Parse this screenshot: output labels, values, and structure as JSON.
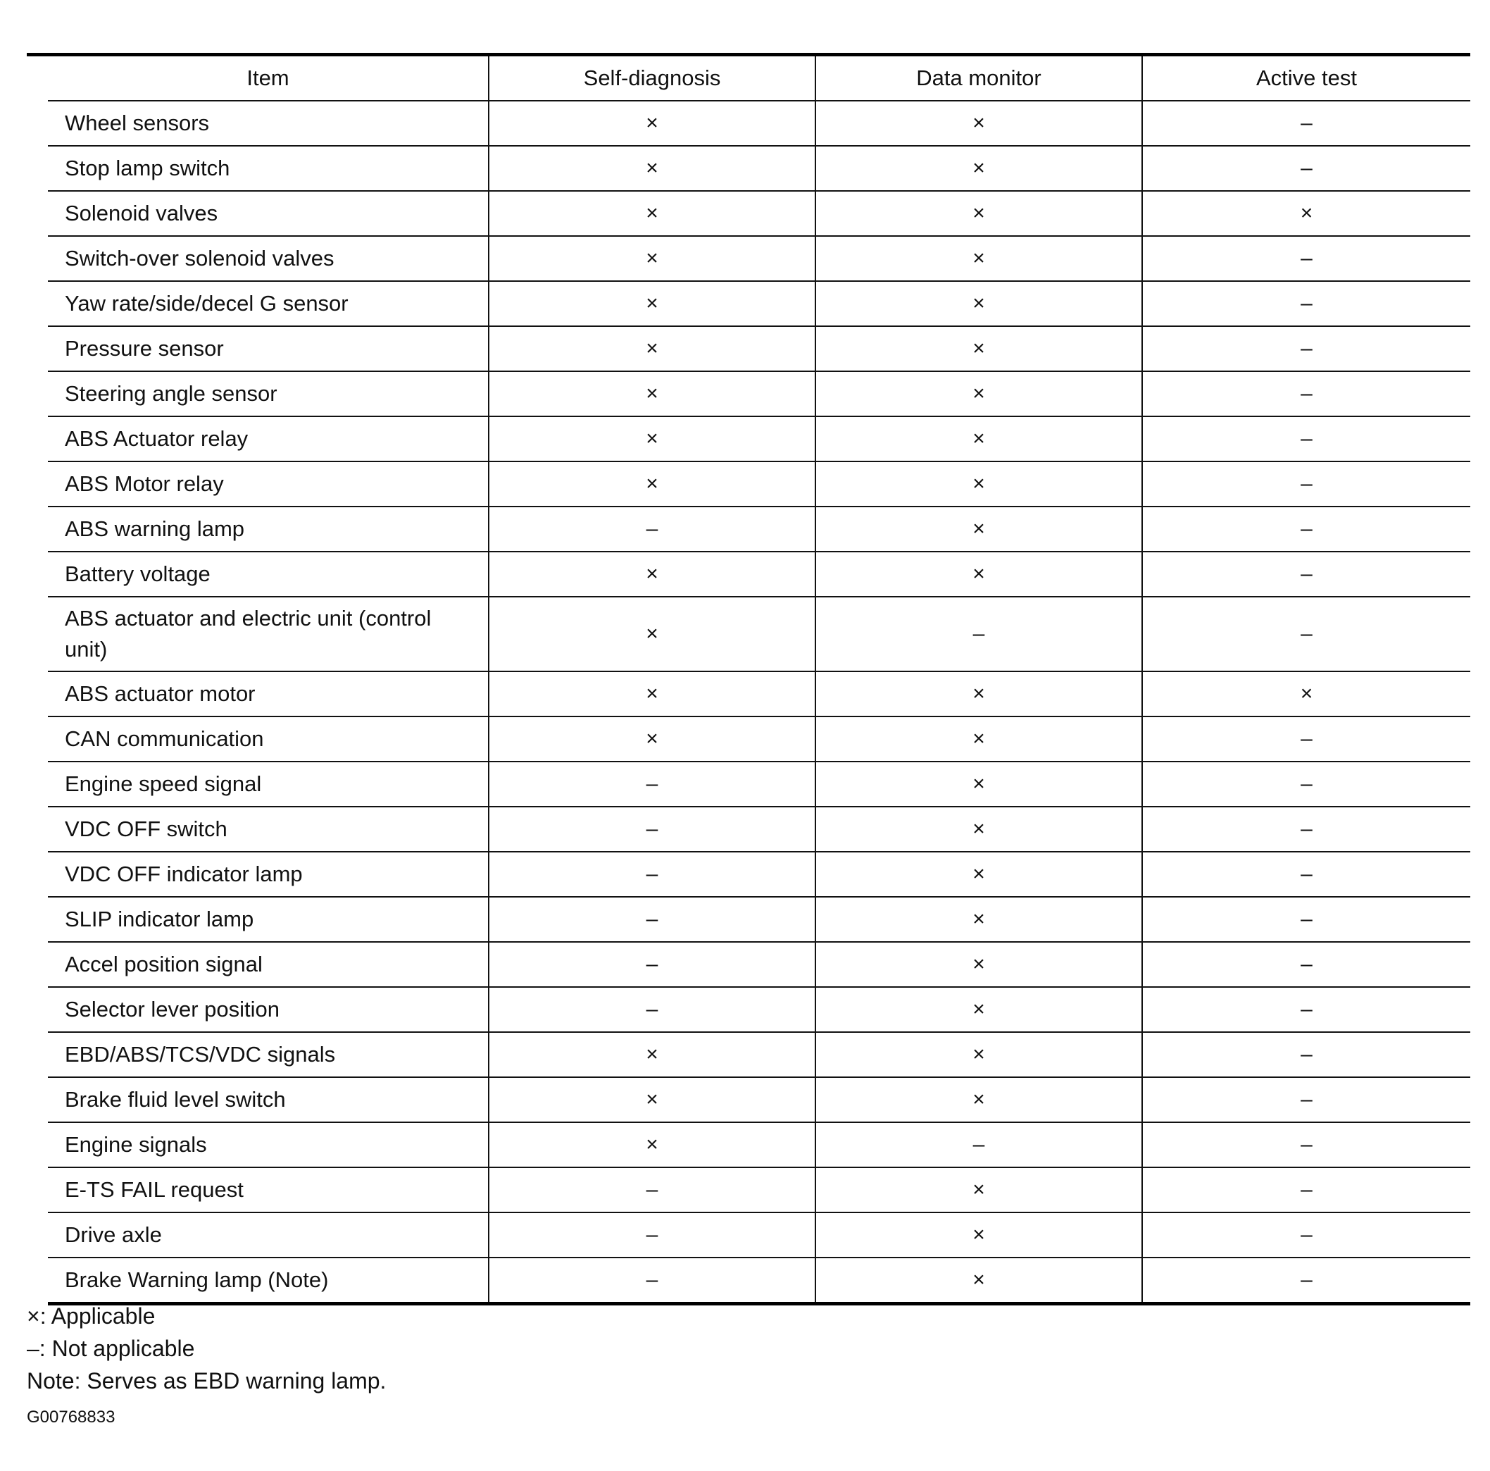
{
  "table": {
    "headers": [
      "Item",
      "Self-diagnosis",
      "Data monitor",
      "Active test"
    ],
    "rows": [
      [
        "Wheel sensors",
        "×",
        "×",
        "–"
      ],
      [
        "Stop lamp switch",
        "×",
        "×",
        "–"
      ],
      [
        "Solenoid valves",
        "×",
        "×",
        "×"
      ],
      [
        "Switch-over solenoid valves",
        "×",
        "×",
        "–"
      ],
      [
        "Yaw rate/side/decel G sensor",
        "×",
        "×",
        "–"
      ],
      [
        "Pressure sensor",
        "×",
        "×",
        "–"
      ],
      [
        "Steering angle sensor",
        "×",
        "×",
        "–"
      ],
      [
        "ABS Actuator relay",
        "×",
        "×",
        "–"
      ],
      [
        "ABS Motor relay",
        "×",
        "×",
        "–"
      ],
      [
        "ABS warning lamp",
        "–",
        "×",
        "–"
      ],
      [
        "Battery voltage",
        "×",
        "×",
        "–"
      ],
      [
        "ABS actuator and electric unit (control unit)",
        "×",
        "–",
        "–"
      ],
      [
        "ABS actuator motor",
        "×",
        "×",
        "×"
      ],
      [
        "CAN communication",
        "×",
        "×",
        "–"
      ],
      [
        "Engine speed signal",
        "–",
        "×",
        "–"
      ],
      [
        "VDC OFF switch",
        "–",
        "×",
        "–"
      ],
      [
        "VDC OFF indicator lamp",
        "–",
        "×",
        "–"
      ],
      [
        "SLIP indicator lamp",
        "–",
        "×",
        "–"
      ],
      [
        "Accel position signal",
        "–",
        "×",
        "–"
      ],
      [
        "Selector lever position",
        "–",
        "×",
        "–"
      ],
      [
        "EBD/ABS/TCS/VDC signals",
        "×",
        "×",
        "–"
      ],
      [
        "Brake fluid level switch",
        "×",
        "×",
        "–"
      ],
      [
        "Engine signals",
        "×",
        "–",
        "–"
      ],
      [
        "E-TS FAIL request",
        "–",
        "×",
        "–"
      ],
      [
        "Drive axle",
        "–",
        "×",
        "–"
      ],
      [
        "Brake Warning lamp (Note)",
        "–",
        "×",
        "–"
      ]
    ]
  },
  "legend": {
    "applicable": "×: Applicable",
    "not_applicable": "–: Not applicable",
    "note": "Note: Serves as EBD warning lamp."
  },
  "figure_code": "G00768833"
}
